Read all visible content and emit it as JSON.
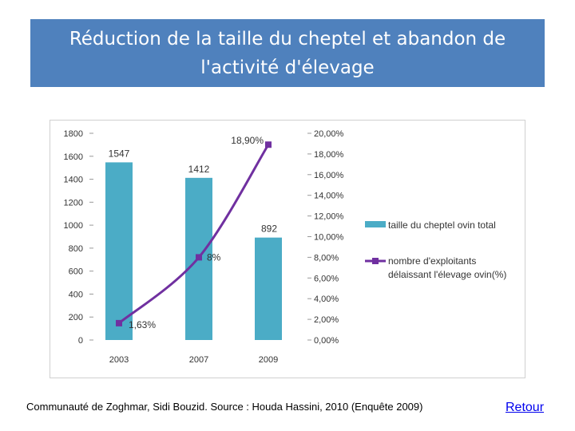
{
  "title": "Réduction de la taille du cheptel et abandon de\nl'activité d'élevage",
  "caption": "Communauté de Zoghmar, Sidi Bouzid. Source : Houda Hassini, 2010 (Enquête 2009)",
  "back_link": "Retour",
  "colors": {
    "bar": "#4bacc6",
    "line": "#7030a0",
    "title_bg": "#4f81bd"
  },
  "chart_data": {
    "type": "bar+line",
    "categories": [
      "2003",
      "2007",
      "2009"
    ],
    "series": [
      {
        "name": "taille du cheptel ovin total",
        "type": "bar",
        "axis": "left",
        "values": [
          1547,
          1412,
          892
        ],
        "labels": [
          "1547",
          "1412",
          "892"
        ]
      },
      {
        "name": "nombre d'exploitants délaissant l'élevage ovin(%)",
        "legend_lines": [
          "nombre d'exploitants",
          "délaissant l'élevage ovin(%)"
        ],
        "type": "line",
        "axis": "right",
        "values": [
          1.63,
          8,
          18.9
        ],
        "labels": [
          "1,63%",
          "8%",
          "18,90%"
        ]
      }
    ],
    "y_left": {
      "min": 0,
      "max": 1800,
      "ticks": [
        "0",
        "200",
        "400",
        "600",
        "800",
        "1000",
        "1200",
        "1400",
        "1600",
        "1800"
      ]
    },
    "y_right": {
      "min": 0,
      "max": 20,
      "ticks": [
        "0,00%",
        "2,00%",
        "4,00%",
        "6,00%",
        "8,00%",
        "10,00%",
        "12,00%",
        "14,00%",
        "16,00%",
        "18,00%",
        "20,00%"
      ]
    },
    "legend_position": "right",
    "grid": false
  }
}
